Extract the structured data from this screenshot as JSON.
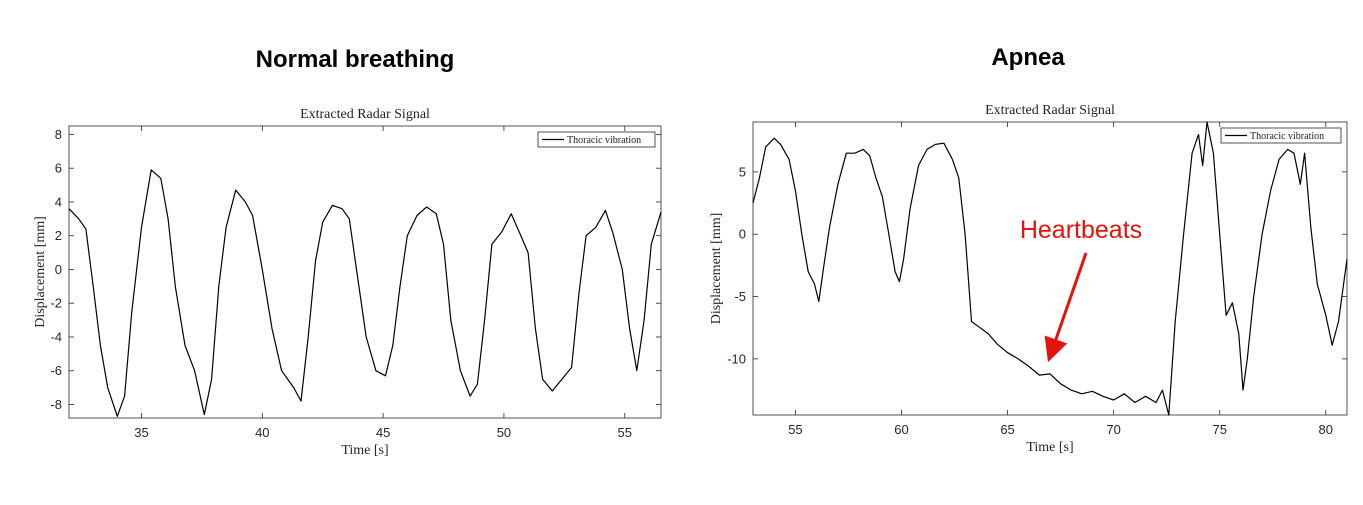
{
  "panels": [
    {
      "heading": "Normal breathing"
    },
    {
      "heading": "Apnea"
    }
  ],
  "annotation": {
    "text": "Heartbeats",
    "color": "#e8120c",
    "points_to": [
      67.0,
      -9.8
    ]
  },
  "chart_data": [
    {
      "type": "line",
      "title": "Extracted Radar Signal",
      "xlabel": "Time [s]",
      "ylabel": "Displacement [mm]",
      "xlim": [
        32,
        56.5
      ],
      "ylim": [
        -8.8,
        8.5
      ],
      "xticks": [
        35,
        40,
        45,
        50,
        55
      ],
      "yticks": [
        -8,
        -6,
        -4,
        -2,
        0,
        2,
        4,
        6,
        8
      ],
      "grid": false,
      "legend": {
        "position": "top-right"
      },
      "series": [
        {
          "name": "Thoracic vibration",
          "color": "#000000",
          "points": [
            [
              32.0,
              3.6
            ],
            [
              32.4,
              3.0
            ],
            [
              32.7,
              2.4
            ],
            [
              33.0,
              -1.0
            ],
            [
              33.3,
              -4.5
            ],
            [
              33.6,
              -7.0
            ],
            [
              34.0,
              -8.7
            ],
            [
              34.3,
              -7.5
            ],
            [
              34.6,
              -2.5
            ],
            [
              35.0,
              2.5
            ],
            [
              35.4,
              5.9
            ],
            [
              35.8,
              5.4
            ],
            [
              36.1,
              3.0
            ],
            [
              36.4,
              -1.0
            ],
            [
              36.8,
              -4.5
            ],
            [
              37.2,
              -6.0
            ],
            [
              37.6,
              -8.6
            ],
            [
              37.9,
              -6.5
            ],
            [
              38.2,
              -1.0
            ],
            [
              38.5,
              2.5
            ],
            [
              38.9,
              4.7
            ],
            [
              39.3,
              4.0
            ],
            [
              39.6,
              3.2
            ],
            [
              40.0,
              0.0
            ],
            [
              40.4,
              -3.5
            ],
            [
              40.8,
              -6.0
            ],
            [
              41.3,
              -7.0
            ],
            [
              41.6,
              -7.8
            ],
            [
              41.9,
              -4.0
            ],
            [
              42.2,
              0.5
            ],
            [
              42.5,
              2.8
            ],
            [
              42.9,
              3.8
            ],
            [
              43.3,
              3.6
            ],
            [
              43.6,
              3.0
            ],
            [
              43.9,
              0.0
            ],
            [
              44.3,
              -4.0
            ],
            [
              44.7,
              -6.0
            ],
            [
              45.1,
              -6.3
            ],
            [
              45.4,
              -4.5
            ],
            [
              45.7,
              -1.0
            ],
            [
              46.0,
              2.0
            ],
            [
              46.4,
              3.2
            ],
            [
              46.8,
              3.7
            ],
            [
              47.2,
              3.3
            ],
            [
              47.5,
              1.5
            ],
            [
              47.8,
              -3.0
            ],
            [
              48.2,
              -6.0
            ],
            [
              48.6,
              -7.5
            ],
            [
              48.9,
              -6.8
            ],
            [
              49.2,
              -3.0
            ],
            [
              49.5,
              1.5
            ],
            [
              49.9,
              2.2
            ],
            [
              50.3,
              3.3
            ],
            [
              50.7,
              2.0
            ],
            [
              51.0,
              1.0
            ],
            [
              51.3,
              -3.5
            ],
            [
              51.6,
              -6.5
            ],
            [
              52.0,
              -7.2
            ],
            [
              52.4,
              -6.5
            ],
            [
              52.8,
              -5.8
            ],
            [
              53.1,
              -1.5
            ],
            [
              53.4,
              2.0
            ],
            [
              53.8,
              2.5
            ],
            [
              54.2,
              3.5
            ],
            [
              54.5,
              2.2
            ],
            [
              54.9,
              0.0
            ],
            [
              55.2,
              -3.5
            ],
            [
              55.5,
              -6.0
            ],
            [
              55.8,
              -3.0
            ],
            [
              56.1,
              1.5
            ],
            [
              56.5,
              3.4
            ]
          ]
        }
      ]
    },
    {
      "type": "line",
      "title": "Extracted Radar Signal",
      "xlabel": "Time [s]",
      "ylabel": "Displacement [mm]",
      "xlim": [
        53,
        81
      ],
      "ylim": [
        -14.5,
        9
      ],
      "xticks": [
        55,
        60,
        65,
        70,
        75,
        80
      ],
      "yticks": [
        -10,
        -5,
        0,
        5
      ],
      "grid": false,
      "legend": {
        "position": "top-right"
      },
      "series": [
        {
          "name": "Thoracic vibration",
          "color": "#000000",
          "points": [
            [
              53.0,
              2.5
            ],
            [
              53.3,
              4.5
            ],
            [
              53.6,
              7.0
            ],
            [
              54.0,
              7.7
            ],
            [
              54.3,
              7.2
            ],
            [
              54.7,
              6.0
            ],
            [
              55.0,
              3.5
            ],
            [
              55.3,
              0.0
            ],
            [
              55.6,
              -3.0
            ],
            [
              55.9,
              -4.0
            ],
            [
              56.1,
              -5.4
            ],
            [
              56.3,
              -3.0
            ],
            [
              56.6,
              0.5
            ],
            [
              57.0,
              4.0
            ],
            [
              57.4,
              6.5
            ],
            [
              57.8,
              6.5
            ],
            [
              58.2,
              6.8
            ],
            [
              58.5,
              6.3
            ],
            [
              58.8,
              4.5
            ],
            [
              59.1,
              3.0
            ],
            [
              59.4,
              0.0
            ],
            [
              59.7,
              -3.0
            ],
            [
              59.9,
              -3.8
            ],
            [
              60.1,
              -2.0
            ],
            [
              60.4,
              2.0
            ],
            [
              60.8,
              5.5
            ],
            [
              61.2,
              6.8
            ],
            [
              61.6,
              7.2
            ],
            [
              62.0,
              7.3
            ],
            [
              62.4,
              6.0
            ],
            [
              62.7,
              4.5
            ],
            [
              63.0,
              0.0
            ],
            [
              63.3,
              -7.0
            ],
            [
              63.7,
              -7.5
            ],
            [
              64.1,
              -8.0
            ],
            [
              64.5,
              -8.8
            ],
            [
              65.0,
              -9.5
            ],
            [
              65.5,
              -10.0
            ],
            [
              66.0,
              -10.6
            ],
            [
              66.5,
              -11.3
            ],
            [
              67.0,
              -11.2
            ],
            [
              67.5,
              -12.0
            ],
            [
              68.0,
              -12.5
            ],
            [
              68.5,
              -12.8
            ],
            [
              69.0,
              -12.6
            ],
            [
              69.5,
              -13.0
            ],
            [
              70.0,
              -13.3
            ],
            [
              70.5,
              -12.8
            ],
            [
              71.0,
              -13.5
            ],
            [
              71.5,
              -13.0
            ],
            [
              72.0,
              -13.5
            ],
            [
              72.3,
              -12.5
            ],
            [
              72.6,
              -14.5
            ],
            [
              72.9,
              -7.0
            ],
            [
              73.3,
              0.0
            ],
            [
              73.7,
              6.5
            ],
            [
              74.0,
              8.0
            ],
            [
              74.2,
              5.5
            ],
            [
              74.4,
              9.0
            ],
            [
              74.7,
              6.5
            ],
            [
              75.0,
              0.0
            ],
            [
              75.3,
              -6.5
            ],
            [
              75.6,
              -5.5
            ],
            [
              75.9,
              -8.0
            ],
            [
              76.1,
              -12.5
            ],
            [
              76.3,
              -10.0
            ],
            [
              76.6,
              -5.0
            ],
            [
              77.0,
              0.0
            ],
            [
              77.4,
              3.5
            ],
            [
              77.8,
              6.0
            ],
            [
              78.2,
              6.8
            ],
            [
              78.5,
              6.5
            ],
            [
              78.8,
              4.0
            ],
            [
              79.0,
              6.5
            ],
            [
              79.3,
              0.5
            ],
            [
              79.6,
              -4.0
            ],
            [
              80.0,
              -6.5
            ],
            [
              80.3,
              -8.9
            ],
            [
              80.6,
              -7.0
            ],
            [
              81.0,
              -2.0
            ]
          ]
        }
      ]
    }
  ]
}
